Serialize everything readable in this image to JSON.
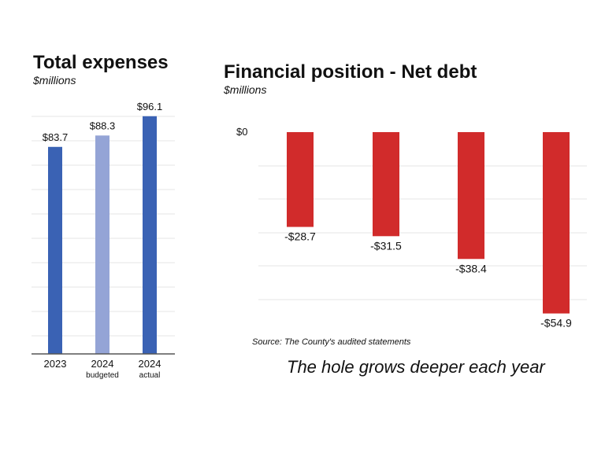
{
  "colors": {
    "expense_2023": "#3a62b4",
    "expense_2024_budgeted": "#94a4d6",
    "expense_2024_actual": "#3a62b4",
    "net_debt": "#d12b2b",
    "gridline": "#e4e4e4",
    "baseline": "#555555"
  },
  "chart_data": [
    {
      "type": "bar",
      "title": "Total expenses",
      "subtitle": "$millions",
      "categories": [
        "2023",
        "2024",
        "2024"
      ],
      "category_notes": [
        "",
        "budgeted",
        "actual"
      ],
      "values": [
        83.7,
        88.3,
        96.1
      ],
      "data_labels": [
        "$83.7",
        "$88.3",
        "$96.1"
      ],
      "xlabel": "",
      "ylabel": "",
      "grid": true,
      "legend": "none"
    },
    {
      "type": "bar",
      "title": "Financial position - Net debt",
      "subtitle": "$millions",
      "values": [
        -28.7,
        -31.5,
        -38.4,
        -54.9
      ],
      "data_labels": [
        "-$28.7",
        "-$31.5",
        "-$38.4",
        "-$54.9"
      ],
      "y_tick_labels": [
        "$0"
      ],
      "xlabel": "",
      "ylabel": "",
      "grid": true,
      "legend": "none"
    }
  ],
  "source_note": "Source: The County's audited statements",
  "tagline": "The hole grows deeper each year"
}
